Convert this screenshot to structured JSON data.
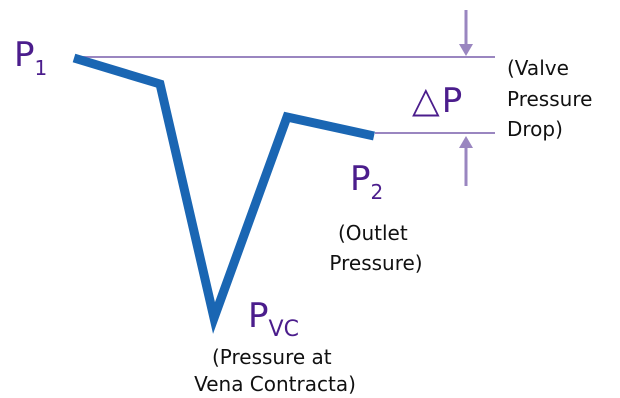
{
  "diagram": {
    "p1": {
      "main": "P",
      "sub": "1"
    },
    "p2": {
      "main": "P",
      "sub": "2"
    },
    "pvc": {
      "main": "P",
      "sub": "VC"
    },
    "delta_symbol": "△",
    "delta_letter": "P",
    "delta_note": [
      "(Valve",
      "Pressure",
      "Drop)"
    ],
    "outlet_note": [
      "(Outlet",
      "Pressure)"
    ],
    "vc_note": [
      "(Pressure at",
      "Vena Contracta)"
    ]
  },
  "colors": {
    "pressure_curve": "#1a66b3",
    "reference_lines": "#9a86c0",
    "label_purple": "#4b1d8c",
    "note_text": "#111111"
  }
}
